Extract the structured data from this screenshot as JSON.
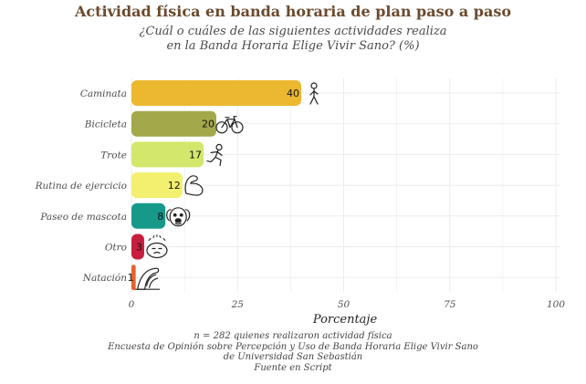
{
  "title": "Actividad física en banda horaria de plan paso a paso",
  "subtitle_lines": [
    "¿Cuál o cuáles de las siguientes actividades realiza",
    "en la Banda Horaria Elige Vivir Sano? (%)"
  ],
  "caption_lines": [
    "n = 282 quienes realizaron actividad física",
    "Encuesta de Opinión sobre Percepción y Uso de Banda Horaria Elige Vivir Sano",
    "de Universidad San Sebastián",
    "Fuente en Script"
  ],
  "chart_data": {
    "type": "bar",
    "orientation": "horizontal",
    "xlabel": "Porcentaje",
    "ylabel": "",
    "xlim": [
      0,
      105
    ],
    "x_ticks": [
      0,
      25,
      50,
      75,
      100
    ],
    "grid": true,
    "categories": [
      "Caminata",
      "Bicicleta",
      "Trote",
      "Rutina de ejercicio",
      "Paseo de mascota",
      "Otro",
      "Natación"
    ],
    "values": [
      40,
      20,
      17,
      12,
      8,
      3,
      1
    ],
    "colors": [
      "#ebb82f",
      "#a3a84a",
      "#d3e76d",
      "#f2f06e",
      "#17998a",
      "#c81e3d",
      "#e8612b"
    ],
    "icons": [
      "walking-person-icon",
      "bicycle-icon",
      "running-person-icon",
      "flexed-biceps-icon",
      "dog-face-icon",
      "dizzy-face-icon",
      "water-wave-icon"
    ],
    "data_labels": [
      "40",
      "20",
      "17",
      "12",
      "8",
      "3",
      "1"
    ]
  }
}
